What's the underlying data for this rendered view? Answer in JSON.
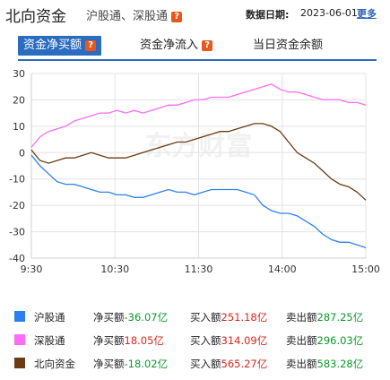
{
  "header": {
    "title": "北向资金",
    "subtitle": "沪股通、深股通",
    "date_label": "数据日期:",
    "date_value": "2023-06-01",
    "more": "更多",
    "help_mark": "?"
  },
  "tabs": [
    {
      "label": "资金净买额",
      "active": true
    },
    {
      "label": "资金净流入",
      "active": false
    },
    {
      "label": "当日资金余额",
      "active": false
    }
  ],
  "watermark": "东方财富",
  "colors": {
    "sh": "#2e80f2",
    "sz": "#ff6bf5",
    "north": "#6b3b12",
    "accent": "#2b6cbf"
  },
  "chart_data": {
    "type": "line",
    "xlabel": "",
    "ylabel": "",
    "x_ticks": [
      "9:30",
      "10:30",
      "11:30",
      "14:00",
      "15:00"
    ],
    "ylim": [
      -40,
      30
    ],
    "y_ticks": [
      30,
      20,
      10,
      0,
      -10,
      -20,
      -30,
      -40
    ],
    "grid": true,
    "series": [
      {
        "name": "沪股通",
        "key": "sh",
        "values": [
          -1,
          -5,
          -8,
          -11,
          -12,
          -12,
          -13,
          -14,
          -15,
          -15,
          -16,
          -16,
          -17,
          -17,
          -16,
          -15,
          -14,
          -15,
          -15,
          -16,
          -15,
          -14,
          -14,
          -14,
          -14,
          -15,
          -16,
          -20,
          -22,
          -23,
          -23,
          -24,
          -26,
          -28,
          -31,
          -33,
          -34,
          -34,
          -35,
          -36.07
        ]
      },
      {
        "name": "深股通",
        "key": "sz",
        "values": [
          2,
          6,
          8,
          9,
          10,
          12,
          13,
          14,
          15,
          15,
          16,
          15,
          16,
          15,
          16,
          17,
          18,
          18,
          19,
          20,
          20,
          21,
          21,
          21,
          22,
          23,
          24,
          25,
          26,
          24,
          23,
          23,
          22,
          21,
          20,
          20,
          20,
          19,
          19,
          18.05
        ]
      },
      {
        "name": "北向资金",
        "key": "north",
        "values": [
          1,
          -3,
          -4,
          -3,
          -2,
          -2,
          -1,
          0,
          -1,
          -2,
          -2,
          -2,
          -1,
          0,
          1,
          2,
          3,
          4,
          4,
          5,
          6,
          7,
          8,
          8,
          9,
          10,
          11,
          11,
          10,
          8,
          4,
          0,
          -2,
          -4,
          -7,
          -10,
          -12,
          -13,
          -15,
          -18.02
        ]
      }
    ]
  },
  "legend": [
    {
      "key": "sh",
      "name": "沪股通",
      "net_label": "净买额",
      "net": "-36.07亿",
      "net_sign": "neg",
      "buy_label": "买入额",
      "buy": "251.18亿",
      "sell_label": "卖出额",
      "sell": "287.25亿"
    },
    {
      "key": "sz",
      "name": "深股通",
      "net_label": "净买额",
      "net": "18.05亿",
      "net_sign": "pos",
      "buy_label": "买入额",
      "buy": "314.09亿",
      "sell_label": "卖出额",
      "sell": "296.03亿"
    },
    {
      "key": "north",
      "name": "北向资金",
      "net_label": "净买额",
      "net": "-18.02亿",
      "net_sign": "neg",
      "buy_label": "买入额",
      "buy": "565.27亿",
      "sell_label": "卖出额",
      "sell": "583.28亿"
    }
  ]
}
